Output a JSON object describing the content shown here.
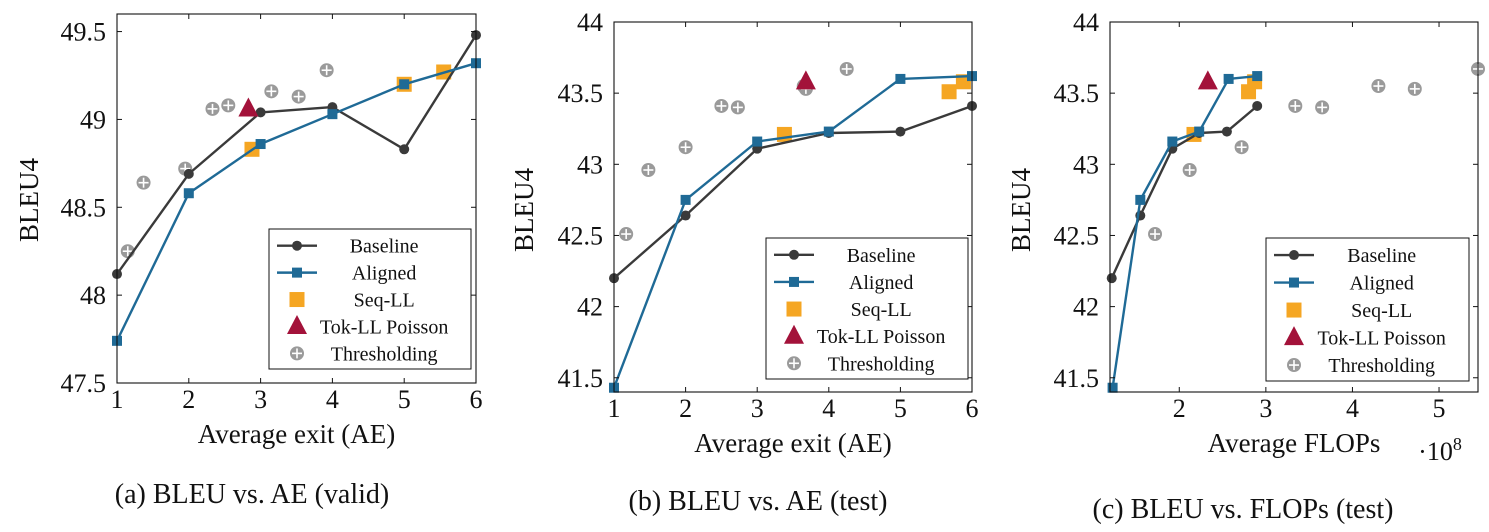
{
  "series_styles": {
    "Baseline": {
      "color": "#3a3a3a",
      "marker": "circle",
      "line": true
    },
    "Aligned": {
      "color": "#1f6a96",
      "marker": "square",
      "line": true
    },
    "Seq-LL": {
      "color": "#f5a623",
      "marker": "square",
      "line": false
    },
    "Tok-LL Poisson": {
      "color": "#a3123a",
      "marker": "triangle",
      "line": false
    },
    "Thresholding": {
      "color": "#9a9a9a",
      "marker": "oplus",
      "line": false
    }
  },
  "chart_data": [
    {
      "type": "line",
      "caption": "(a) BLEU vs. AE (valid)",
      "xlabel": "Average exit (AE)",
      "ylabel": "BLEU4",
      "xlim": [
        1,
        6
      ],
      "ylim": [
        47.5,
        49.6
      ],
      "xticks": [
        1,
        2,
        3,
        4,
        5,
        6
      ],
      "xtick_labels": [
        "1",
        "2",
        "3",
        "4",
        "5",
        "6"
      ],
      "yticks": [
        47.5,
        48,
        48.5,
        49,
        49.5
      ],
      "ytick_labels": [
        "47.5",
        "48",
        "48.5",
        "49",
        "49.5"
      ],
      "legend": "bottom-right",
      "series": [
        {
          "name": "Baseline",
          "x": [
            1.0,
            2.0,
            3.0,
            4.0,
            5.0,
            6.0
          ],
          "y": [
            48.12,
            48.69,
            49.04,
            49.07,
            48.83,
            49.48
          ]
        },
        {
          "name": "Aligned",
          "x": [
            1.0,
            2.0,
            3.0,
            4.0,
            5.0,
            6.0
          ],
          "y": [
            47.74,
            48.58,
            48.86,
            49.03,
            49.2,
            49.32
          ]
        },
        {
          "name": "Seq-LL",
          "x": [
            2.88,
            5.0,
            5.55
          ],
          "y": [
            48.83,
            49.2,
            49.27
          ]
        },
        {
          "name": "Tok-LL Poisson",
          "x": [
            2.83
          ],
          "y": [
            49.06
          ]
        },
        {
          "name": "Thresholding",
          "x": [
            1.15,
            1.37,
            1.95,
            2.33,
            2.55,
            3.15,
            3.53,
            3.92
          ],
          "y": [
            48.25,
            48.64,
            48.72,
            49.06,
            49.08,
            49.16,
            49.13,
            49.28
          ]
        }
      ]
    },
    {
      "type": "line",
      "caption": "(b) BLEU vs. AE (test)",
      "xlabel": "Average exit (AE)",
      "ylabel": "BLEU4",
      "xlim": [
        1,
        6
      ],
      "ylim": [
        41.4,
        44
      ],
      "xticks": [
        1,
        2,
        3,
        4,
        5,
        6
      ],
      "xtick_labels": [
        "1",
        "2",
        "3",
        "4",
        "5",
        "6"
      ],
      "yticks": [
        41.5,
        42,
        42.5,
        43,
        43.5,
        44
      ],
      "ytick_labels": [
        "41.5",
        "42",
        "42.5",
        "43",
        "43.5",
        "44"
      ],
      "legend": "bottom-right",
      "series": [
        {
          "name": "Baseline",
          "x": [
            1.0,
            2.0,
            3.0,
            4.0,
            5.0,
            6.0
          ],
          "y": [
            42.2,
            42.64,
            43.11,
            43.22,
            43.23,
            43.41
          ]
        },
        {
          "name": "Aligned",
          "x": [
            1.0,
            2.0,
            3.0,
            4.0,
            5.0,
            6.0
          ],
          "y": [
            41.43,
            42.75,
            43.16,
            43.23,
            43.6,
            43.62
          ]
        },
        {
          "name": "Seq-LL",
          "x": [
            3.38,
            5.68,
            5.88
          ],
          "y": [
            43.21,
            43.51,
            43.58
          ]
        },
        {
          "name": "Tok-LL Poisson",
          "x": [
            3.68
          ],
          "y": [
            43.58
          ]
        },
        {
          "name": "Thresholding",
          "x": [
            1.17,
            1.48,
            2.0,
            2.5,
            2.73,
            3.65,
            3.68,
            4.25
          ],
          "y": [
            42.51,
            42.96,
            43.12,
            43.41,
            43.4,
            43.55,
            43.53,
            43.67
          ]
        }
      ]
    },
    {
      "type": "line",
      "caption": "(c) BLEU vs. FLOPs (test)",
      "xlabel": "Average FLOPs",
      "x_multiplier": "·10^8",
      "ylabel": "BLEU4",
      "xlim": [
        1.2,
        5.45
      ],
      "ylim": [
        41.4,
        44
      ],
      "xticks": [
        2,
        3,
        4,
        5
      ],
      "xtick_labels": [
        "2",
        "3",
        "4",
        "5"
      ],
      "yticks": [
        41.5,
        42,
        42.5,
        43,
        43.5,
        44
      ],
      "ytick_labels": [
        "41.5",
        "42",
        "42.5",
        "43",
        "43.5",
        "44"
      ],
      "legend": "bottom-right",
      "series": [
        {
          "name": "Baseline",
          "x": [
            1.22,
            1.55,
            1.92,
            2.23,
            2.55,
            2.9
          ],
          "y": [
            42.2,
            42.64,
            43.11,
            43.22,
            43.23,
            43.41
          ]
        },
        {
          "name": "Aligned",
          "x": [
            1.23,
            1.55,
            1.92,
            2.23,
            2.57,
            2.9
          ],
          "y": [
            41.43,
            42.75,
            43.16,
            43.23,
            43.6,
            43.62
          ]
        },
        {
          "name": "Seq-LL",
          "x": [
            2.17,
            2.8,
            2.87
          ],
          "y": [
            43.21,
            43.51,
            43.58
          ]
        },
        {
          "name": "Tok-LL Poisson",
          "x": [
            2.33
          ],
          "y": [
            43.58
          ]
        },
        {
          "name": "Thresholding",
          "x": [
            1.72,
            2.12,
            2.72,
            3.34,
            3.65,
            4.3,
            4.72,
            5.45
          ],
          "y": [
            42.51,
            42.96,
            43.12,
            43.41,
            43.4,
            43.55,
            43.53,
            43.67
          ]
        }
      ]
    }
  ]
}
